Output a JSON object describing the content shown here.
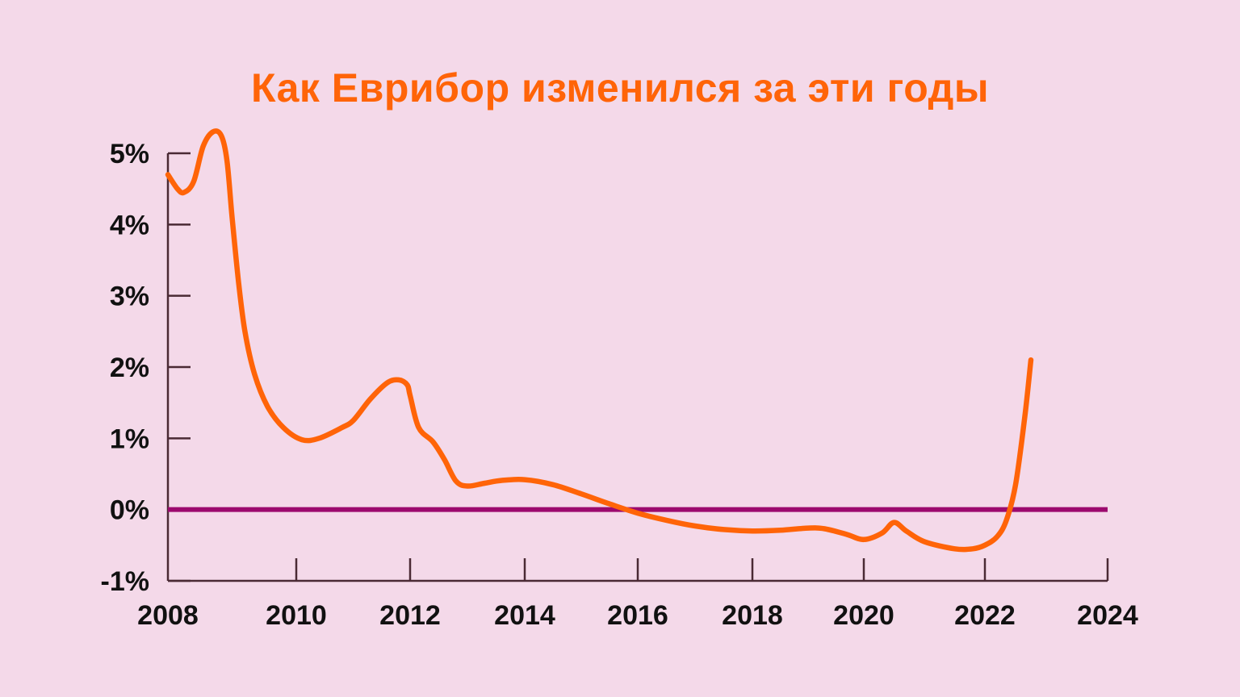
{
  "chart_data": {
    "type": "line",
    "title": "Как Еврибор изменился за эти годы",
    "xlabel": "",
    "ylabel": "",
    "xlim": [
      2008,
      2024
    ],
    "ylim": [
      -1,
      5
    ],
    "x_ticks": [
      2008,
      2010,
      2012,
      2014,
      2016,
      2018,
      2020,
      2022,
      2024
    ],
    "x_tick_labels": [
      "2008",
      "2010",
      "2012",
      "2014",
      "2016",
      "2018",
      "2020",
      "2022",
      "2024"
    ],
    "y_ticks": [
      -1,
      0,
      1,
      2,
      3,
      4,
      5
    ],
    "y_tick_labels": [
      "-1%",
      "0%",
      "1%",
      "2%",
      "3%",
      "4%",
      "5%"
    ],
    "reference_line": {
      "y": 0
    },
    "grid": false,
    "series": [
      {
        "x": [
          2008.0,
          2008.15,
          2008.25,
          2008.4,
          2008.55,
          2008.7,
          2008.83,
          2008.92,
          2009.0,
          2009.1,
          2009.2,
          2009.35,
          2009.55,
          2009.8,
          2010.1,
          2010.4,
          2010.8,
          2011.0,
          2011.3,
          2011.6,
          2011.8,
          2011.95,
          2012.0,
          2012.15,
          2012.4,
          2012.6,
          2012.8,
          2013.0,
          2013.3,
          2013.6,
          2014.0,
          2014.5,
          2015.0,
          2015.5,
          2016.0,
          2016.5,
          2017.0,
          2017.5,
          2018.0,
          2018.5,
          2019.0,
          2019.3,
          2019.7,
          2020.0,
          2020.3,
          2020.5,
          2020.7,
          2021.0,
          2021.5,
          2021.8,
          2022.0,
          2022.2,
          2022.35,
          2022.5,
          2022.65,
          2022.75
        ],
        "y": [
          4.7,
          4.5,
          4.45,
          4.6,
          5.1,
          5.3,
          5.25,
          4.9,
          4.1,
          3.2,
          2.5,
          1.9,
          1.45,
          1.15,
          0.98,
          1.0,
          1.15,
          1.25,
          1.55,
          1.78,
          1.82,
          1.75,
          1.6,
          1.15,
          0.95,
          0.7,
          0.4,
          0.33,
          0.37,
          0.41,
          0.42,
          0.35,
          0.22,
          0.08,
          -0.05,
          -0.15,
          -0.23,
          -0.28,
          -0.3,
          -0.29,
          -0.26,
          -0.27,
          -0.35,
          -0.42,
          -0.33,
          -0.18,
          -0.3,
          -0.45,
          -0.55,
          -0.55,
          -0.5,
          -0.38,
          -0.15,
          0.35,
          1.3,
          2.1
        ]
      }
    ],
    "colors": {
      "background": "#f4d9e9",
      "line": "#ff6408",
      "zero_line": "#9c0a6e",
      "axis": "#4a2a34",
      "text": "#111111",
      "title": "#ff6408"
    }
  }
}
